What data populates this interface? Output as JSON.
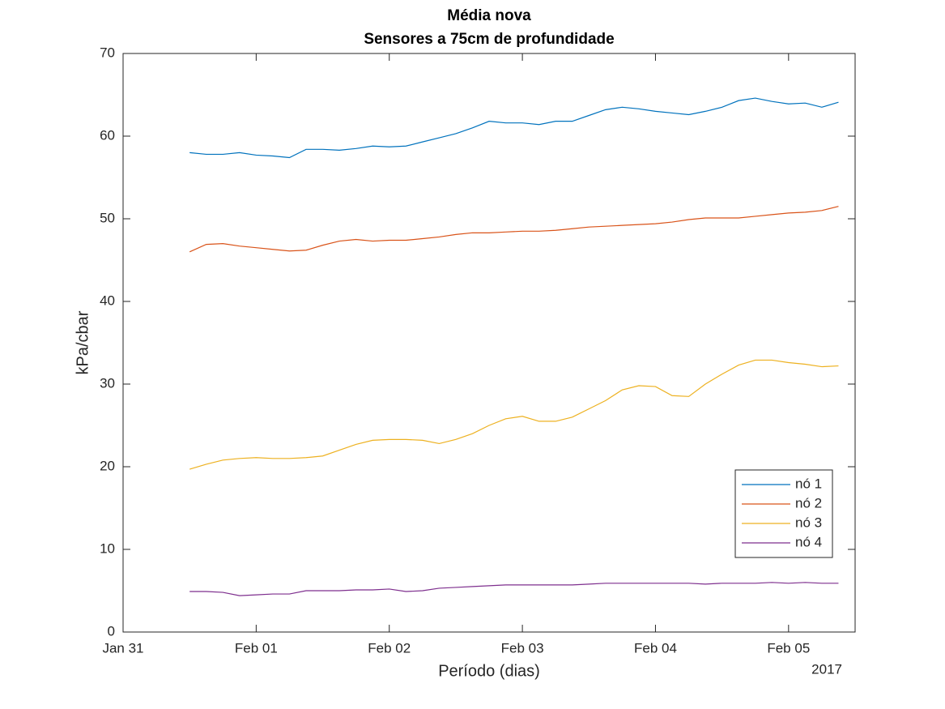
{
  "chart_data": {
    "type": "line",
    "title": "Média nova",
    "subtitle": "Sensores a 75cm de profundidade",
    "xlabel": "Período (dias)",
    "ylabel": "kPa/cbar",
    "annotation": "2017",
    "x": [
      0.5,
      0.625,
      0.75,
      0.875,
      1,
      1.125,
      1.25,
      1.375,
      1.5,
      1.625,
      1.75,
      1.875,
      2,
      2.125,
      2.25,
      2.375,
      2.5,
      2.625,
      2.75,
      2.875,
      3,
      3.125,
      3.25,
      3.375,
      3.5,
      3.625,
      3.75,
      3.875,
      4,
      4.125,
      4.25,
      4.375,
      4.5,
      4.625,
      4.75,
      4.875,
      5,
      5.125,
      5.25,
      5.375
    ],
    "xlim": [
      0,
      5.5
    ],
    "xticks": [
      {
        "value": 0,
        "label": "Jan 31"
      },
      {
        "value": 1,
        "label": "Feb 01"
      },
      {
        "value": 2,
        "label": "Feb 02"
      },
      {
        "value": 3,
        "label": "Feb 03"
      },
      {
        "value": 4,
        "label": "Feb 04"
      },
      {
        "value": 5,
        "label": "Feb 05"
      }
    ],
    "ylim": [
      0,
      70
    ],
    "yticks": [
      0,
      10,
      20,
      30,
      40,
      50,
      60,
      70
    ],
    "grid": false,
    "legend": "lower right",
    "series": [
      {
        "name": "nó 1",
        "color": "#0072bd",
        "values": [
          58,
          57.8,
          57.8,
          58,
          57.7,
          57.6,
          57.4,
          58.4,
          58.4,
          58.3,
          58.5,
          58.8,
          58.7,
          58.8,
          59.3,
          59.8,
          60.3,
          61,
          61.8,
          61.6,
          61.6,
          61.4,
          61.8,
          61.8,
          62.5,
          63.2,
          63.5,
          63.3,
          63,
          62.8,
          62.6,
          63,
          63.5,
          64.3,
          64.6,
          64.2,
          63.9,
          64,
          63.5,
          64.1
        ]
      },
      {
        "name": "nó 2",
        "color": "#d95319",
        "values": [
          46,
          46.9,
          47,
          46.7,
          46.5,
          46.3,
          46.1,
          46.2,
          46.8,
          47.3,
          47.5,
          47.3,
          47.4,
          47.4,
          47.6,
          47.8,
          48.1,
          48.3,
          48.3,
          48.4,
          48.5,
          48.5,
          48.6,
          48.8,
          49,
          49.1,
          49.2,
          49.3,
          49.4,
          49.6,
          49.9,
          50.1,
          50.1,
          50.1,
          50.3,
          50.5,
          50.7,
          50.8,
          51,
          51.5
        ]
      },
      {
        "name": "nó 3",
        "color": "#edb120",
        "values": [
          19.7,
          20.3,
          20.8,
          21,
          21.1,
          21,
          21,
          21.1,
          21.3,
          22,
          22.7,
          23.2,
          23.3,
          23.3,
          23.2,
          22.8,
          23.3,
          24,
          25,
          25.8,
          26.1,
          25.5,
          25.5,
          26,
          27,
          28,
          29.3,
          29.8,
          29.7,
          28.6,
          28.5,
          30,
          31.2,
          32.3,
          32.9,
          32.9,
          32.6,
          32.4,
          32.1,
          32.2
        ]
      },
      {
        "name": "nó 4",
        "color": "#7e2f8e",
        "values": [
          4.9,
          4.9,
          4.8,
          4.4,
          4.5,
          4.6,
          4.6,
          5,
          5,
          5,
          5.1,
          5.1,
          5.2,
          4.9,
          5,
          5.3,
          5.4,
          5.5,
          5.6,
          5.7,
          5.7,
          5.7,
          5.7,
          5.7,
          5.8,
          5.9,
          5.9,
          5.9,
          5.9,
          5.9,
          5.9,
          5.8,
          5.9,
          5.9,
          5.9,
          6,
          5.9,
          6,
          5.9,
          5.9
        ]
      }
    ]
  }
}
